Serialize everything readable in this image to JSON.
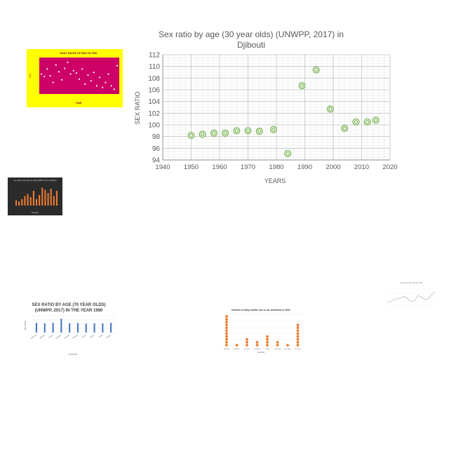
{
  "chart_data": {
    "type": "scatter",
    "title_line1": "Sex ratio by age (30 year olds) (UNWPP, 2017) in",
    "title_line2": "Djibouti",
    "xlabel": "YEARS",
    "ylabel": "SEX RATIO",
    "xlim": [
      1940,
      2020
    ],
    "ylim": [
      94,
      112
    ],
    "x_ticks": [
      1940,
      1950,
      1960,
      1970,
      1980,
      1990,
      2000,
      2010,
      2020
    ],
    "y_ticks": [
      94,
      96,
      98,
      100,
      102,
      104,
      106,
      108,
      110,
      112
    ],
    "grid": true,
    "marker_color": "#70ad47",
    "points": [
      {
        "x": 1950,
        "y": 98.2
      },
      {
        "x": 1954,
        "y": 98.4
      },
      {
        "x": 1958,
        "y": 98.6
      },
      {
        "x": 1962,
        "y": 98.6
      },
      {
        "x": 1966,
        "y": 99.0
      },
      {
        "x": 1970,
        "y": 99.0
      },
      {
        "x": 1974,
        "y": 98.9
      },
      {
        "x": 1979,
        "y": 99.2
      },
      {
        "x": 1984,
        "y": 95.1
      },
      {
        "x": 1989,
        "y": 106.7
      },
      {
        "x": 1994,
        "y": 109.4
      },
      {
        "x": 1999,
        "y": 102.7
      },
      {
        "x": 2004,
        "y": 99.4
      },
      {
        "x": 2008,
        "y": 100.5
      },
      {
        "x": 2012,
        "y": 100.5
      },
      {
        "x": 2015,
        "y": 100.8
      }
    ]
  },
  "thumbnails": {
    "milk": {
      "title": "DAILY SALES OF MILK IN TINS",
      "xlabel": "YEAR",
      "ylabel": "TINS",
      "bg_color": "#ffff00",
      "plot_color": "#cc0066",
      "values": [
        0.55,
        0.48,
        0.7,
        0.5,
        0.3,
        0.82,
        0.62,
        0.38,
        0.72,
        0.9,
        0.55,
        0.65,
        0.58,
        0.4,
        0.7,
        0.25,
        0.52,
        0.35,
        0.6,
        0.2,
        0.45,
        0.15,
        0.3,
        0.55,
        0.2,
        0.1,
        0.8
      ]
    },
    "dark_bar": {
      "title": "Sex ratio by age (30 year olds) (UNWPP, 2017) in Djibouti",
      "xlabel": "Countries",
      "bg_color": "#2b2b2b",
      "bar_color": "#ed7d31",
      "values": [
        0.25,
        0.2,
        0.3,
        0.45,
        0.55,
        0.4,
        0.7,
        0.3,
        0.5,
        0.85,
        0.75,
        0.6,
        0.8,
        0.45,
        0.7
      ]
    },
    "sex70": {
      "title_line1": "SEX RATIO BY AGE (70 YEAR OLDS)",
      "title_line2": "(UNWPP, 2017) IN THE YEAR 1980",
      "xlabel": "COUNTRY",
      "ylabel": "SEX RATIO",
      "bar_color": "#4472c4",
      "categories": [
        "Rwanda",
        "Uganda",
        "Kenya",
        "Tanzania",
        "Burundi",
        "Somalia",
        "Congo",
        "Sudan",
        "Chad",
        "Malawi"
      ],
      "values": [
        0.62,
        0.6,
        0.63,
        0.9,
        0.6,
        0.62,
        0.58,
        0.6,
        0.6,
        0.63
      ]
    },
    "deaths": {
      "title": "Number of daily deaths due to car accidents in 2002",
      "xlabel": "Countries",
      "marker_color": "#ed7d31",
      "categories": [
        "Rwanda",
        "El Salva",
        "Ecuador",
        "El Salvad",
        "Guinea",
        "Isle of Man",
        "San Tomo",
        "Sri Lanka"
      ],
      "stacks": [
        11,
        1,
        3,
        2,
        4,
        2,
        1,
        8
      ]
    },
    "line": {
      "title": "Sex ratio by age (30 year olds)",
      "bg_color": "#ffffff",
      "line_color": "#bfbfbf",
      "values": [
        0.3,
        0.35,
        0.45,
        0.5,
        0.55,
        0.65,
        0.5,
        0.35,
        0.4,
        0.7,
        0.6,
        0.45,
        0.5,
        0.75,
        0.9
      ]
    }
  }
}
